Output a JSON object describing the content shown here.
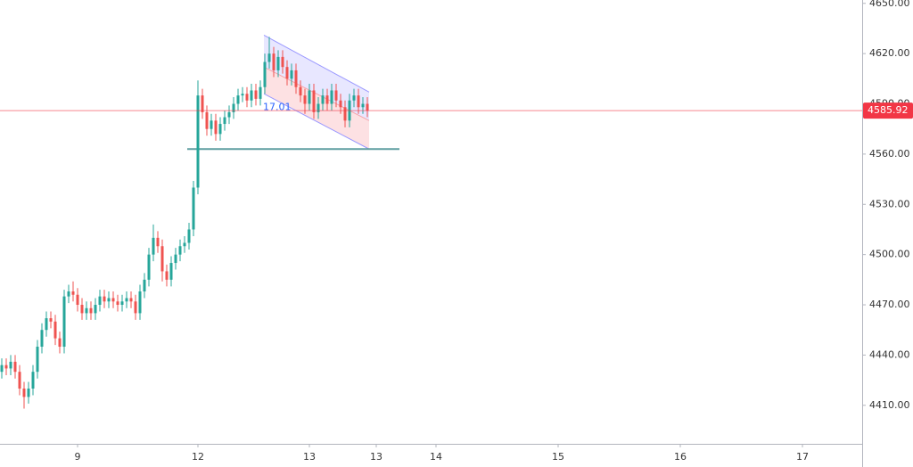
{
  "chart_data": {
    "type": "candlestick",
    "xlim": [
      -0.4,
      193
    ],
    "ylim": [
      4387,
      4652
    ],
    "xticks": [
      {
        "value": 17,
        "label": "9"
      },
      {
        "value": 44,
        "label": "12"
      },
      {
        "value": 69,
        "label": "13"
      },
      {
        "value": 84,
        "label": "13"
      },
      {
        "value": 97.4,
        "label": "14"
      },
      {
        "value": 124.8,
        "label": "15"
      },
      {
        "value": 152.2,
        "label": "16"
      },
      {
        "value": 179.6,
        "label": "17"
      }
    ],
    "yticks": [
      {
        "value": 4410,
        "label": "4410.00"
      },
      {
        "value": 4440,
        "label": "4440.00"
      },
      {
        "value": 4470,
        "label": "4470.00"
      },
      {
        "value": 4500,
        "label": "4500.00"
      },
      {
        "value": 4530,
        "label": "4530.00"
      },
      {
        "value": 4560,
        "label": "4560.00"
      },
      {
        "value": 4590,
        "label": "4590.00"
      },
      {
        "value": 4620,
        "label": "4620.00"
      },
      {
        "value": 4650,
        "label": "4650.00"
      }
    ],
    "up_color": "#26a69a",
    "down_color": "#ef5350",
    "open": [
      4430,
      4434,
      4432,
      4436,
      4430,
      4420,
      4415,
      4420,
      4430,
      4445,
      4455,
      4462,
      4460,
      4450,
      4445,
      4475,
      4478,
      4476,
      4470,
      4465,
      4468,
      4465,
      4470,
      4475,
      4472,
      4474,
      4472,
      4470,
      4472,
      4474,
      4472,
      4465,
      4478,
      4485,
      4500,
      4510,
      4505,
      4490,
      4485,
      4495,
      4500,
      4505,
      4507,
      4515,
      4540,
      4595,
      4585,
      4575,
      4580,
      4572,
      4578,
      4582,
      4585,
      4590,
      4595,
      4596,
      4592,
      4598,
      4593,
      4600,
      4615,
      4620,
      4610,
      4618,
      4612,
      4605,
      4610,
      4600,
      4595,
      4590,
      4598,
      4585,
      4590,
      4595,
      4590,
      4598,
      4592,
      4588,
      4580,
      4592,
      4595,
      4588,
      4590
    ],
    "high": [
      4438,
      4438,
      4440,
      4440,
      4434,
      4424,
      4424,
      4434,
      4449,
      4459,
      4466,
      4466,
      4464,
      4454,
      4479,
      4482,
      4484,
      4480,
      4474,
      4472,
      4472,
      4474,
      4479,
      4479,
      4478,
      4478,
      4476,
      4476,
      4478,
      4478,
      4476,
      4482,
      4489,
      4504,
      4518,
      4514,
      4509,
      4494,
      4499,
      4504,
      4509,
      4511,
      4519,
      4544,
      4604,
      4599,
      4589,
      4584,
      4584,
      4582,
      4586,
      4589,
      4594,
      4599,
      4600,
      4600,
      4602,
      4602,
      4604,
      4620,
      4630,
      4624,
      4622,
      4622,
      4616,
      4614,
      4614,
      4604,
      4599,
      4602,
      4602,
      4594,
      4599,
      4599,
      4602,
      4602,
      4596,
      4592,
      4596,
      4599,
      4599,
      4594,
      4594
    ],
    "low": [
      4426,
      4428,
      4428,
      4426,
      4416,
      4408,
      4411,
      4416,
      4426,
      4441,
      4451,
      4456,
      4446,
      4441,
      4441,
      4471,
      4472,
      4466,
      4461,
      4461,
      4461,
      4461,
      4466,
      4468,
      4468,
      4468,
      4466,
      4466,
      4468,
      4468,
      4461,
      4461,
      4474,
      4481,
      4496,
      4501,
      4484,
      4481,
      4481,
      4491,
      4496,
      4501,
      4503,
      4511,
      4536,
      4581,
      4571,
      4571,
      4568,
      4568,
      4574,
      4578,
      4581,
      4586,
      4591,
      4588,
      4588,
      4589,
      4589,
      4596,
      4611,
      4606,
      4606,
      4608,
      4601,
      4601,
      4596,
      4591,
      4584,
      4586,
      4581,
      4581,
      4586,
      4586,
      4586,
      4588,
      4584,
      4576,
      4576,
      4588,
      4584,
      4584,
      4582
    ],
    "close": [
      4434,
      4432,
      4436,
      4430,
      4420,
      4415,
      4420,
      4430,
      4445,
      4455,
      4462,
      4460,
      4450,
      4445,
      4475,
      4478,
      4476,
      4470,
      4465,
      4468,
      4465,
      4470,
      4475,
      4472,
      4474,
      4472,
      4470,
      4472,
      4474,
      4472,
      4465,
      4478,
      4485,
      4500,
      4510,
      4505,
      4490,
      4485,
      4495,
      4500,
      4505,
      4507,
      4515,
      4540,
      4595,
      4585,
      4575,
      4580,
      4572,
      4578,
      4582,
      4585,
      4590,
      4595,
      4596,
      4592,
      4598,
      4593,
      4600,
      4615,
      4620,
      4610,
      4618,
      4612,
      4605,
      4610,
      4600,
      4595,
      4590,
      4598,
      4585,
      4590,
      4595,
      4590,
      4598,
      4592,
      4588,
      4580,
      4592,
      4595,
      4588,
      4590,
      4586
    ],
    "last_price": {
      "value": 4585.92,
      "label": "4585.92",
      "color": "#f23645"
    },
    "level_line": {
      "x": [
        41.6,
        89.2
      ],
      "value": 4563,
      "color": "#5f9ea0"
    },
    "channel": {
      "x": [
        58.8,
        82.4
      ],
      "upper": [
        4631,
        4597
      ],
      "middle": [
        4612,
        4580
      ],
      "lower": [
        4596,
        4563
      ]
    },
    "annotation": {
      "x": 58.6,
      "y": 4588,
      "text": "17.01"
    }
  }
}
